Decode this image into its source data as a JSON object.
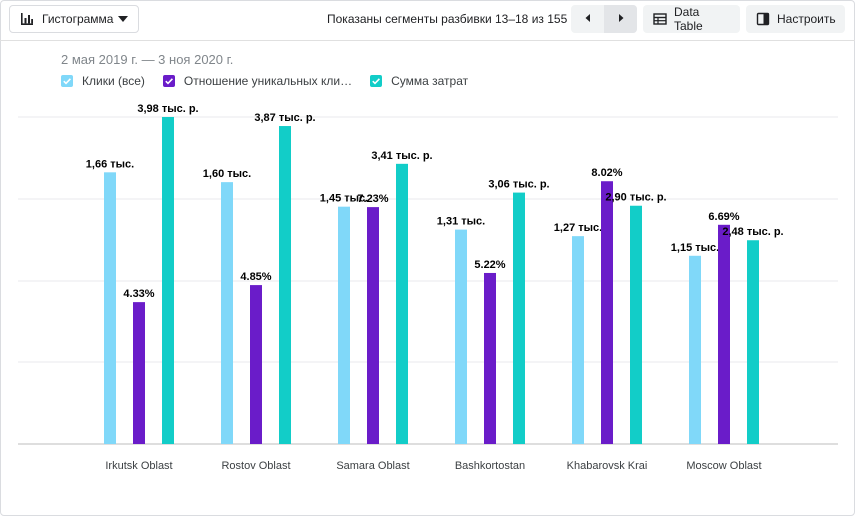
{
  "toolbar": {
    "chart_type_label": "Гистограмма",
    "chart_type_icon": "bar-chart-icon",
    "segments_text": "Показаны сегменты разбивки 13–18 из 155",
    "prev_icon": "chevron-left-icon",
    "next_icon": "chevron-right-icon",
    "data_table_label": "Data Table",
    "data_table_icon": "table-icon",
    "configure_label": "Настроить",
    "configure_icon": "panel-icon"
  },
  "date_range": "2 мая 2019 г. — 3 ноя 2020 г.",
  "colors": {
    "clicks": "#80d8f9",
    "ratio": "#6a1cc9",
    "cost": "#12cdc8",
    "grid": "#e8eaed",
    "axis": "#bdbdbd"
  },
  "legend": [
    {
      "label": "Клики (все)",
      "color": "#80d8f9"
    },
    {
      "label": "Отношение уникальных кли…",
      "color": "#6a1cc9"
    },
    {
      "label": "Сумма затрат",
      "color": "#12cdc8"
    }
  ],
  "chart_data": {
    "type": "bar",
    "categories": [
      "Irkutsk Oblast",
      "Rostov Oblast",
      "Samara Oblast",
      "Bashkortostan",
      "Khabarovsk Krai",
      "Moscow Oblast"
    ],
    "series": [
      {
        "name": "Клики (все)",
        "values": [
          1660,
          1600,
          1450,
          1310,
          1270,
          1150
        ],
        "labels": [
          "1,66 тыс.",
          "1,60 тыс.",
          "1,45 тыс.",
          "1,31 тыс.",
          "1,27 тыс.",
          "1,15 тыс."
        ],
        "scale_max": 1998
      },
      {
        "name": "Отношение уникальных кли…",
        "values": [
          4.33,
          4.85,
          7.23,
          5.22,
          8.02,
          6.69
        ],
        "labels": [
          "4.33%",
          "4.85%",
          "7.23%",
          "5.22%",
          "8.02%",
          "6.69%"
        ],
        "scale_max": 9.98
      },
      {
        "name": "Сумма затрат",
        "values": [
          3980,
          3870,
          3410,
          3060,
          2900,
          2480
        ],
        "labels": [
          "3,98 тыс. р.",
          "3,87 тыс. р.",
          "3,41 тыс. р.",
          "3,06 тыс. р.",
          "2,90 тыс. р.",
          "2,48 тыс. р."
        ],
        "scale_max": 3980
      }
    ],
    "grid": true,
    "legend_position": "top-left"
  }
}
